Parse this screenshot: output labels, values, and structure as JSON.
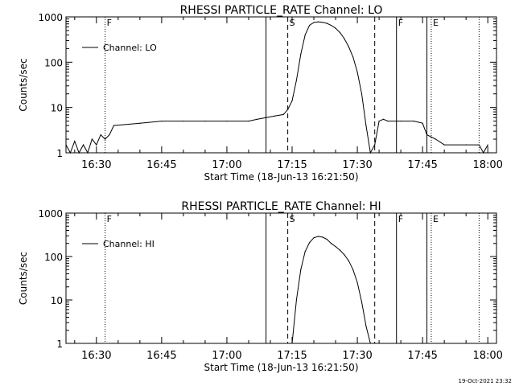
{
  "chart_data": [
    {
      "type": "line",
      "title": "RHESSI PARTICLE_RATE Channel: LO",
      "xlabel": "Start Time (18-Jun-13 16:21:50)",
      "ylabel": "Counts/sec",
      "yscale": "log",
      "ylim": [
        1,
        1000
      ],
      "xlim": [
        "16:23",
        "18:02"
      ],
      "x_ticks": [
        "16:30",
        "16:45",
        "17:00",
        "17:15",
        "17:30",
        "17:45",
        "18:00"
      ],
      "y_ticks": [
        "1",
        "10",
        "100",
        "1000"
      ],
      "legend": "top-left",
      "grid": false,
      "series": [
        {
          "name": "Channel: LO",
          "color": "#000000",
          "x": [
            "16:23",
            "16:24",
            "16:25",
            "16:26",
            "16:27",
            "16:28",
            "16:29",
            "16:30",
            "16:31",
            "16:32",
            "16:33",
            "16:34",
            "16:40",
            "16:45",
            "16:50",
            "16:55",
            "17:00",
            "17:05",
            "17:07",
            "17:09",
            "17:11",
            "17:13",
            "17:14",
            "17:15",
            "17:16",
            "17:17",
            "17:18",
            "17:19",
            "17:20",
            "17:21",
            "17:22",
            "17:23",
            "17:24",
            "17:25",
            "17:26",
            "17:27",
            "17:28",
            "17:29",
            "17:30",
            "17:31",
            "17:32",
            "17:33",
            "17:34",
            "17:35",
            "17:36",
            "17:37",
            "17:40",
            "17:43",
            "17:45",
            "17:46",
            "17:48",
            "17:50",
            "17:55",
            "17:58",
            "17:59",
            "18:00"
          ],
          "values": [
            1.5,
            1.0,
            1.8,
            1.0,
            1.5,
            1.0,
            2.0,
            1.5,
            2.5,
            2.0,
            2.5,
            4.0,
            4.5,
            5.0,
            5.0,
            5.0,
            5.0,
            5.0,
            5.5,
            6.0,
            6.5,
            7.0,
            9.0,
            14.0,
            40.0,
            150.0,
            400.0,
            650.0,
            750.0,
            780.0,
            760.0,
            720.0,
            650.0,
            560.0,
            450.0,
            330.0,
            220.0,
            130.0,
            60.0,
            20.0,
            4.0,
            1.0,
            1.5,
            5.0,
            5.5,
            5.0,
            5.0,
            5.0,
            4.5,
            2.5,
            2.0,
            1.5,
            1.5,
            1.5,
            1.0,
            1.5
          ]
        }
      ],
      "markers": [
        {
          "time": "16:32",
          "style": "dotted",
          "label": "F"
        },
        {
          "time": "17:09",
          "style": "solid",
          "label": ""
        },
        {
          "time": "17:14",
          "style": "dashed",
          "label": "S"
        },
        {
          "time": "17:34",
          "style": "dashed",
          "label": ""
        },
        {
          "time": "17:39",
          "style": "solid",
          "label": "F"
        },
        {
          "time": "17:46",
          "style": "solid",
          "label": ""
        },
        {
          "time": "17:47",
          "style": "dotted",
          "label": "E"
        },
        {
          "time": "17:58",
          "style": "dotted",
          "label": ""
        }
      ]
    },
    {
      "type": "line",
      "title": "RHESSI PARTICLE_RATE Channel: HI",
      "xlabel": "Start Time (18-Jun-13 16:21:50)",
      "ylabel": "Counts/sec",
      "yscale": "log",
      "ylim": [
        1,
        1000
      ],
      "xlim": [
        "16:23",
        "18:02"
      ],
      "x_ticks": [
        "16:30",
        "16:45",
        "17:00",
        "17:15",
        "17:30",
        "17:45",
        "18:00"
      ],
      "y_ticks": [
        "1",
        "10",
        "100",
        "1000"
      ],
      "legend": "top-left",
      "grid": false,
      "series": [
        {
          "name": "Channel: HI",
          "color": "#000000",
          "x": [
            "17:15",
            "17:16",
            "17:17",
            "17:18",
            "17:19",
            "17:20",
            "17:21",
            "17:22",
            "17:23",
            "17:24",
            "17:25",
            "17:26",
            "17:27",
            "17:28",
            "17:29",
            "17:30",
            "17:31",
            "17:32",
            "17:33"
          ],
          "values": [
            1.0,
            10.0,
            50.0,
            130.0,
            210.0,
            270.0,
            290.0,
            280.0,
            250.0,
            200.0,
            170.0,
            140.0,
            110.0,
            80.0,
            50.0,
            25.0,
            9.0,
            2.5,
            1.0
          ]
        }
      ],
      "markers": [
        {
          "time": "16:32",
          "style": "dotted",
          "label": "F"
        },
        {
          "time": "17:09",
          "style": "solid",
          "label": ""
        },
        {
          "time": "17:14",
          "style": "dashed",
          "label": "S"
        },
        {
          "time": "17:34",
          "style": "dashed",
          "label": ""
        },
        {
          "time": "17:39",
          "style": "solid",
          "label": "F"
        },
        {
          "time": "17:46",
          "style": "solid",
          "label": ""
        },
        {
          "time": "17:47",
          "style": "dotted",
          "label": "E"
        },
        {
          "time": "17:58",
          "style": "dotted",
          "label": ""
        }
      ]
    }
  ],
  "footer": {
    "timestamp": "19-Oct-2021 23:32"
  }
}
